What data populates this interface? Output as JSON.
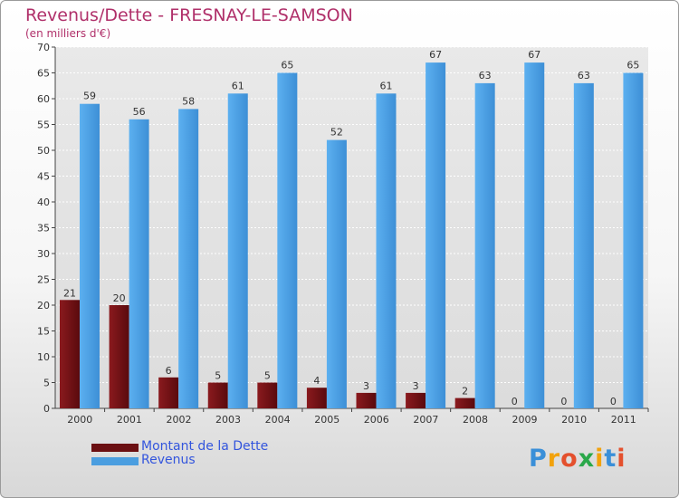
{
  "header": {
    "title": "Revenus/Dette - FRESNAY-LE-SAMSON",
    "subtitle": "(en milliers d'€)"
  },
  "chart_data": {
    "type": "bar",
    "title": "Revenus/Dette - FRESNAY-LE-SAMSON",
    "ylabel": "(en milliers d'€)",
    "xlabel": "",
    "categories": [
      "2000",
      "2001",
      "2002",
      "2003",
      "2004",
      "2005",
      "2006",
      "2007",
      "2008",
      "2009",
      "2010",
      "2011"
    ],
    "series": [
      {
        "name": "Montant de la Dette",
        "color": "#6b0f12",
        "values": [
          21,
          20,
          6,
          5,
          5,
          4,
          3,
          3,
          2,
          0,
          0,
          0
        ]
      },
      {
        "name": "Revenus",
        "color": "#4b9ee0",
        "values": [
          59,
          56,
          58,
          61,
          65,
          52,
          61,
          67,
          63,
          67,
          63,
          65
        ]
      }
    ],
    "ylim": [
      0,
      70
    ],
    "yticks": [
      0,
      5,
      10,
      15,
      20,
      25,
      30,
      35,
      40,
      45,
      50,
      55,
      60,
      65,
      70
    ],
    "grid": true,
    "data_labels": true,
    "legend_position": "bottom-left"
  },
  "legend": {
    "items": [
      {
        "label": "Montant de la Dette",
        "color": "#6b0f12"
      },
      {
        "label": "Revenus",
        "color": "#4b9ee0"
      }
    ]
  },
  "logo": {
    "text": "Proxiti",
    "letters": [
      {
        "char": "P",
        "color": "#3a8fd8"
      },
      {
        "char": "r",
        "color": "#f2a20c"
      },
      {
        "char": "o",
        "color": "#e4502d"
      },
      {
        "char": "x",
        "color": "#2aa84a"
      },
      {
        "char": "i",
        "color": "#f2a20c"
      },
      {
        "char": "t",
        "color": "#3a8fd8"
      },
      {
        "char": "i",
        "color": "#e4502d"
      }
    ]
  }
}
